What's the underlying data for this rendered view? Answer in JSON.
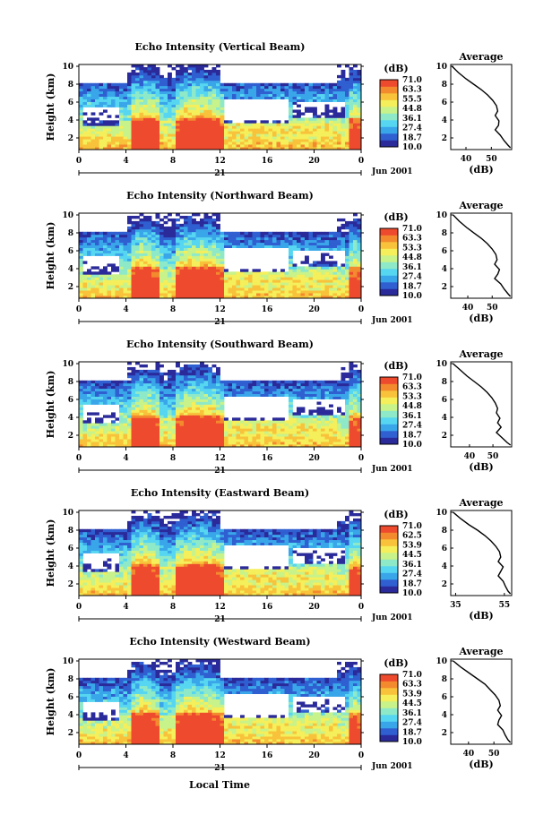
{
  "colors": {
    "scale": [
      "#2a2a9a",
      "#2f5fd0",
      "#3aa6ea",
      "#56d6f0",
      "#8ee9c8",
      "#c8f28a",
      "#f4ef5a",
      "#f8c23a",
      "#f38a2e",
      "#ee4a2e"
    ],
    "background": "#ffffff",
    "axis": "#000000"
  },
  "xlabel_bottom": "Local Time",
  "chart_data": [
    {
      "type": "heatmap",
      "title": "Echo Intensity (Vertical Beam)",
      "ylabel": "Height (km)",
      "ylim": [
        0.7,
        10.2
      ],
      "yticks": [
        "2",
        "4",
        "6",
        "8",
        "10"
      ],
      "xticks": [
        "0",
        "4",
        "8",
        "12",
        "16",
        "20",
        "0"
      ],
      "xlim": [
        0,
        24
      ],
      "date_label": "21",
      "month_label": "Jun 2001",
      "colorbar": {
        "unit": "(dB)",
        "ticks": [
          "71.0",
          "63.3",
          "55.5",
          "44.8",
          "36.1",
          "27.4",
          "18.7",
          "10.0"
        ]
      },
      "profile": {
        "title": "Average",
        "xlabel": "(dB)",
        "xticks": [
          "40",
          "50"
        ],
        "xlim": [
          34,
          58
        ],
        "ylim": [
          0.7,
          10.2
        ],
        "yticks": [
          "2",
          "4",
          "6",
          "8",
          "10"
        ],
        "x": [
          34.5,
          37,
          40,
          43,
          46,
          48.5,
          50.5,
          52,
          52.5,
          51.5,
          53,
          52.8,
          51.5,
          53.5,
          55,
          56.5,
          57.5
        ],
        "y": [
          10,
          9.3,
          8.6,
          8,
          7.4,
          6.8,
          6.2,
          5.6,
          5,
          4.5,
          3.9,
          3.4,
          2.9,
          2.3,
          1.7,
          1.2,
          0.9
        ]
      }
    },
    {
      "type": "heatmap",
      "title": "Echo Intensity (Northward Beam)",
      "ylabel": "Height (km)",
      "ylim": [
        0.7,
        10.2
      ],
      "yticks": [
        "2",
        "4",
        "6",
        "8",
        "10"
      ],
      "xticks": [
        "0",
        "4",
        "8",
        "12",
        "16",
        "20",
        "0"
      ],
      "xlim": [
        0,
        24
      ],
      "date_label": "21",
      "month_label": "Jun 2001",
      "colorbar": {
        "unit": "(dB)",
        "ticks": [
          "71.0",
          "63.3",
          "53.3",
          "44.8",
          "36.1",
          "27.4",
          "18.7",
          "10.0"
        ]
      },
      "profile": {
        "title": "Average",
        "xlabel": "(dB)",
        "xticks": [
          "40",
          "50"
        ],
        "xlim": [
          33,
          58
        ],
        "ylim": [
          0.7,
          10.2
        ],
        "yticks": [
          "2",
          "4",
          "6",
          "8",
          "10"
        ],
        "x": [
          34,
          36.5,
          39.5,
          42.5,
          45.5,
          48,
          50,
          51.5,
          52,
          51,
          53,
          52.3,
          51,
          53.5,
          55,
          56.5,
          57.5
        ],
        "y": [
          10,
          9.3,
          8.6,
          8,
          7.4,
          6.8,
          6.2,
          5.6,
          5,
          4.5,
          3.9,
          3.4,
          2.9,
          2.3,
          1.7,
          1.2,
          0.9
        ]
      }
    },
    {
      "type": "heatmap",
      "title": "Echo Intensity (Southward Beam)",
      "ylabel": "Height (km)",
      "ylim": [
        0.7,
        10.2
      ],
      "yticks": [
        "2",
        "4",
        "6",
        "8",
        "10"
      ],
      "xticks": [
        "0",
        "4",
        "8",
        "12",
        "16",
        "20",
        "0"
      ],
      "xlim": [
        0,
        24
      ],
      "date_label": "21",
      "month_label": "Jun 2001",
      "colorbar": {
        "unit": "(dB)",
        "ticks": [
          "71.0",
          "63.3",
          "53.3",
          "44.8",
          "36.1",
          "27.4",
          "18.7",
          "10.0"
        ]
      },
      "profile": {
        "title": "Average",
        "xlabel": "(dB)",
        "xticks": [
          "40",
          "50"
        ],
        "xlim": [
          32,
          58
        ],
        "ylim": [
          0.7,
          10.2
        ],
        "yticks": [
          "2",
          "4",
          "6",
          "8",
          "10"
        ],
        "x": [
          33,
          36,
          39,
          42,
          45,
          47.5,
          49.5,
          51,
          52,
          51.5,
          53,
          52,
          53.5,
          51.5,
          54,
          56,
          57.5
        ],
        "y": [
          10,
          9.3,
          8.6,
          8,
          7.4,
          6.8,
          6.2,
          5.6,
          5,
          4.5,
          3.9,
          3.4,
          2.9,
          2.3,
          1.7,
          1.2,
          0.9
        ]
      }
    },
    {
      "type": "heatmap",
      "title": "Echo Intensity (Eastward Beam)",
      "ylabel": "Height (km)",
      "ylim": [
        0.7,
        10.2
      ],
      "yticks": [
        "2",
        "4",
        "6",
        "8",
        "10"
      ],
      "xticks": [
        "0",
        "4",
        "8",
        "12",
        "16",
        "20",
        "0"
      ],
      "xlim": [
        0,
        24
      ],
      "date_label": "21",
      "month_label": "Jun 2001",
      "colorbar": {
        "unit": "(dB)",
        "ticks": [
          "71.0",
          "62.5",
          "53.9",
          "44.5",
          "36.1",
          "27.4",
          "18.7",
          "10.0"
        ]
      },
      "profile": {
        "title": "Average",
        "xlabel": "(dB)",
        "xticks": [
          "35",
          "55"
        ],
        "xlim": [
          33,
          58
        ],
        "ylim": [
          0.7,
          10.2
        ],
        "yticks": [
          "2",
          "4",
          "6",
          "8",
          "10"
        ],
        "x": [
          34,
          37,
          40.5,
          44,
          47,
          49.5,
          51.5,
          53,
          53.5,
          52.5,
          54.5,
          53.5,
          52.5,
          54.5,
          55.5,
          56.5,
          57.5
        ],
        "y": [
          10,
          9.3,
          8.6,
          8,
          7.4,
          6.8,
          6.2,
          5.6,
          5,
          4.5,
          3.9,
          3.4,
          2.9,
          2.3,
          1.7,
          1.2,
          0.9
        ]
      }
    },
    {
      "type": "heatmap",
      "title": "Echo Intensity (Westward Beam)",
      "ylabel": "Height (km)",
      "ylim": [
        0.7,
        10.2
      ],
      "yticks": [
        "2",
        "4",
        "6",
        "8",
        "10"
      ],
      "xticks": [
        "0",
        "4",
        "8",
        "12",
        "16",
        "20",
        "0"
      ],
      "xlim": [
        0,
        24
      ],
      "date_label": "21",
      "month_label": "Jun 2001",
      "colorbar": {
        "unit": "(dB)",
        "ticks": [
          "71.0",
          "63.3",
          "53.9",
          "44.5",
          "36.1",
          "27.4",
          "18.7",
          "10.0"
        ]
      },
      "profile": {
        "title": "Average",
        "xlabel": "(dB)",
        "xticks": [
          "40",
          "50"
        ],
        "xlim": [
          33,
          57
        ],
        "ylim": [
          0.7,
          10.2
        ],
        "yticks": [
          "2",
          "4",
          "6",
          "8",
          "10"
        ],
        "x": [
          34,
          37,
          40.5,
          43.5,
          46.5,
          48.5,
          50.5,
          52,
          52.5,
          51.5,
          53,
          52,
          51.5,
          53.5,
          54.5,
          55.5,
          56.5
        ],
        "y": [
          10,
          9.3,
          8.6,
          8,
          7.4,
          6.8,
          6.2,
          5.6,
          5,
          4.5,
          3.9,
          3.4,
          2.9,
          2.3,
          1.7,
          1.2,
          0.9
        ]
      }
    }
  ]
}
